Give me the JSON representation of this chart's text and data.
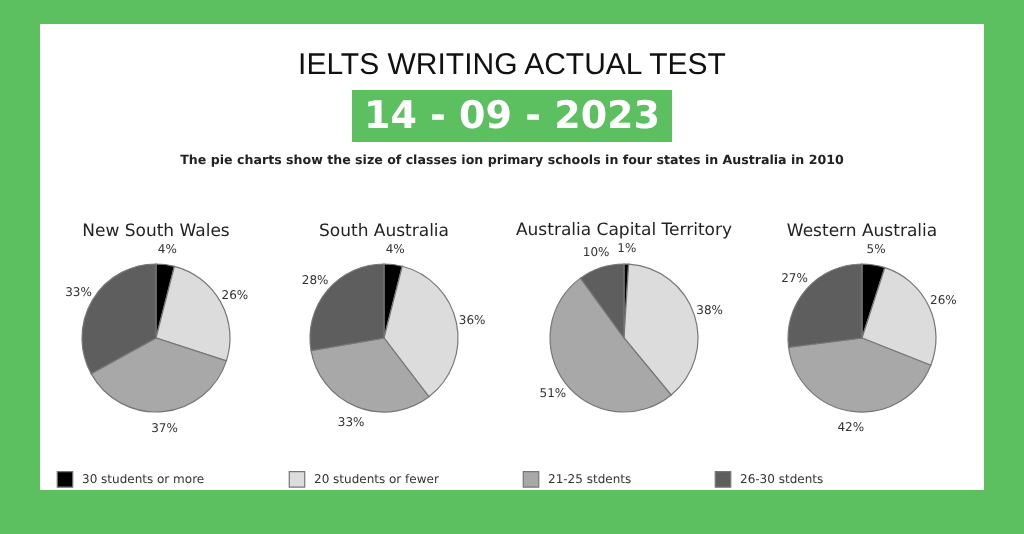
{
  "chart_data": [
    {
      "type": "other",
      "title": "IELTS WRITING ACTUAL TEST",
      "subtitle": "14 - 09 - 2023",
      "annotations": [
        "The pie charts show the size of classes ion primary schools in four states in Australia in 2010"
      ]
    },
    {
      "type": "pie",
      "title": "New South Wales",
      "categories": [
        "30 students or more",
        "20 students or fewer",
        "21-25 stdents",
        "26-30 stdents"
      ],
      "values": [
        4,
        26,
        37,
        33
      ],
      "value_labels": [
        "4%",
        "26%",
        "37%",
        "33%"
      ],
      "colors": [
        "#000000",
        "#dcdcdc",
        "#a8a8a8",
        "#5e5e5e"
      ],
      "legend": "bottom"
    },
    {
      "type": "pie",
      "title": "South Australia",
      "categories": [
        null,
        null,
        null,
        null
      ],
      "values": [
        4,
        36,
        33,
        28
      ],
      "value_labels": [
        "4%",
        "36%",
        "33%",
        "28%"
      ],
      "colors": [
        "#000000",
        "#dcdcdc",
        "#a8a8a8",
        "#5e5e5e"
      ]
    },
    {
      "type": "pie",
      "title": "Australia Capital Territory",
      "categories": [
        null,
        null,
        null,
        null
      ],
      "values": [
        1,
        38,
        51,
        10
      ],
      "value_labels": [
        "1%",
        "38%",
        "51%",
        "10%"
      ],
      "colors": [
        "#000000",
        "#dcdcdc",
        "#a8a8a8",
        "#5e5e5e"
      ]
    },
    {
      "type": "pie",
      "title": "Western Australia",
      "categories": [
        null,
        null,
        null,
        null
      ],
      "values": [
        5,
        26,
        42,
        27
      ],
      "value_labels": [
        "5%",
        "26%",
        "42%",
        "27%"
      ],
      "colors": [
        "#000000",
        "#dcdcdc",
        "#a8a8a8",
        "#5e5e5e"
      ]
    }
  ]
}
